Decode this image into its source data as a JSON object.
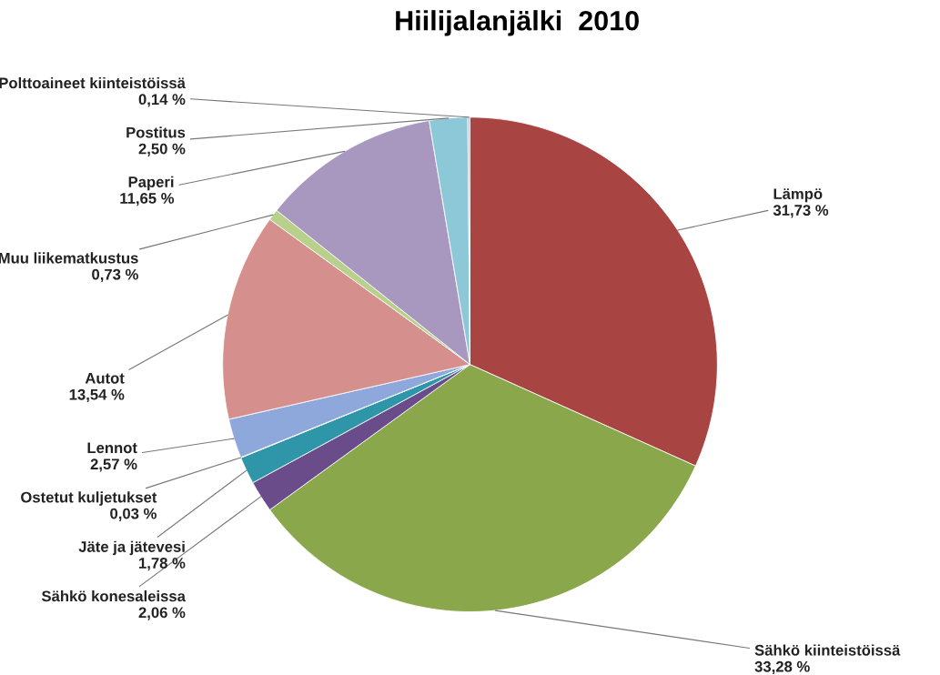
{
  "chart_data": {
    "type": "pie",
    "title": "Hiilijalanjälki  2010",
    "categories": [
      "Lämpö",
      "Sähkö kiinteistöissä",
      "Sähkö konesaleissa",
      "Jäte ja jätevesi",
      "Ostetut kuljetukset",
      "Lennot",
      "Autot",
      "Muu liikematkustus",
      "Paperi",
      "Postitus",
      "Polttoaineet kiinteistöissä"
    ],
    "values": [
      31.73,
      33.28,
      2.06,
      1.78,
      0.03,
      2.57,
      13.54,
      0.73,
      11.65,
      2.5,
      0.14
    ],
    "value_labels": [
      "31,73 %",
      "33,28 %",
      "2,06 %",
      "1,78 %",
      "0,03 %",
      "2,57 %",
      "13,54 %",
      "0,73 %",
      "11,65 %",
      "2,50 %",
      "0,14 %"
    ],
    "colors": [
      "#a84442",
      "#8aa84b",
      "#6b4c8a",
      "#2e96a8",
      "#d89a6a",
      "#8fa8dc",
      "#d58f8c",
      "#b9cf8c",
      "#a898c0",
      "#8cc8d8",
      "#c9b9d9"
    ],
    "legend": false
  }
}
